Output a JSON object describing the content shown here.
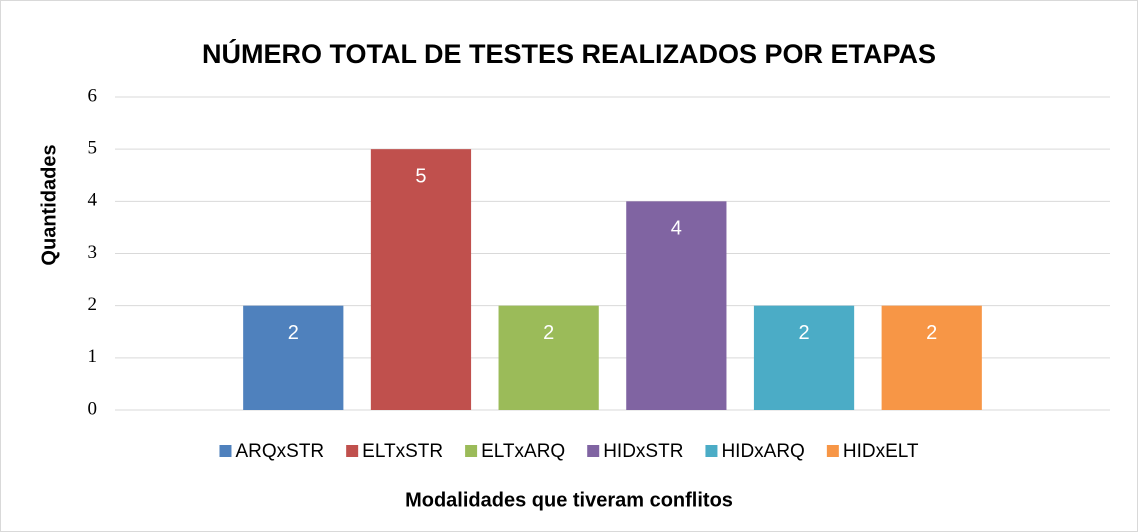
{
  "chart_data": {
    "type": "bar",
    "title": "NÚMERO TOTAL DE TESTES REALIZADOS POR ETAPAS",
    "xlabel": "Modalidades que tiveram conflitos",
    "ylabel": "Quantidades",
    "categories": [
      null
    ],
    "series": [
      {
        "name": "ARQxSTR",
        "color": "#4f81bd",
        "values": [
          2
        ]
      },
      {
        "name": "ELTxSTR",
        "color": "#c0504d",
        "values": [
          5
        ]
      },
      {
        "name": "ELTxARQ",
        "color": "#9bbb59",
        "values": [
          2
        ]
      },
      {
        "name": "HIDxSTR",
        "color": "#8064a2",
        "values": [
          4
        ]
      },
      {
        "name": "HIDxARQ",
        "color": "#4bacc6",
        "values": [
          2
        ]
      },
      {
        "name": "HIDxELT",
        "color": "#f79646",
        "values": [
          2
        ]
      }
    ],
    "ylim": [
      0,
      6
    ],
    "yticks": [
      0,
      1,
      2,
      3,
      4,
      5,
      6
    ],
    "grid": true,
    "legend": "bottom"
  }
}
